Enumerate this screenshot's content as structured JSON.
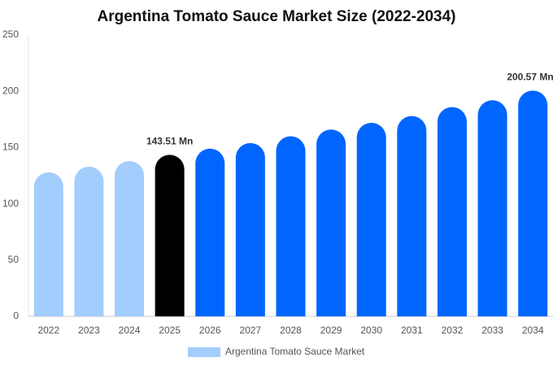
{
  "chart_data": {
    "type": "bar",
    "title": "Argentina Tomato Sauce Market Size (2022-2034)",
    "categories": [
      "2022",
      "2023",
      "2024",
      "2025",
      "2026",
      "2027",
      "2028",
      "2029",
      "2030",
      "2031",
      "2032",
      "2033",
      "2034"
    ],
    "series": [
      {
        "name": "Argentina Tomato Sauce Market",
        "color": "#a3cdfc",
        "values": [
          128,
          133,
          138,
          143.51,
          149,
          154,
          160,
          166,
          172,
          178,
          186,
          192,
          200.57
        ],
        "value_labels": [
          null,
          null,
          null,
          "143.51 Mn",
          null,
          null,
          null,
          null,
          null,
          null,
          null,
          null,
          "200.57 Mn"
        ],
        "colors": [
          "#a3cdfc",
          "#a3cdfc",
          "#a3cdfc",
          "#000000",
          "#0066ff",
          "#0066ff",
          "#0066ff",
          "#0066ff",
          "#0066ff",
          "#0066ff",
          "#0066ff",
          "#0066ff",
          "#0066ff"
        ]
      }
    ],
    "ylim": [
      0,
      250
    ],
    "yticks": [
      0,
      50,
      100,
      150,
      200,
      250
    ],
    "grid": false,
    "legend": "bottom"
  }
}
